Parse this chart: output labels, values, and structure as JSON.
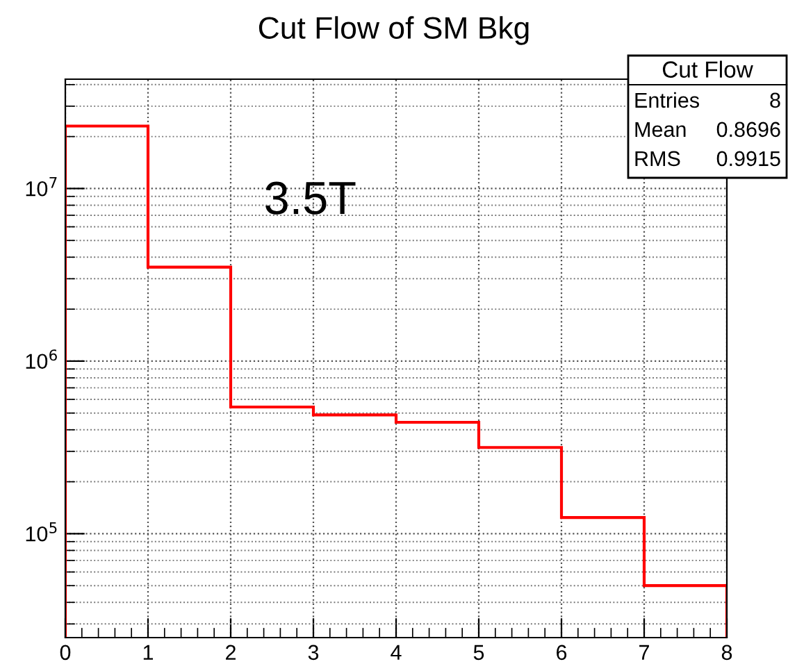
{
  "chart_data": {
    "type": "histogram",
    "title": "Cut Flow of SM Bkg",
    "bins": [
      0,
      1,
      2,
      3,
      4,
      5,
      6,
      7,
      8
    ],
    "values": [
      23000000,
      3500000,
      542000,
      488000,
      442000,
      316000,
      124000,
      50000
    ],
    "color": "#ff0000",
    "log": "y",
    "grid": true,
    "legend": false,
    "xlim": [
      0,
      8
    ],
    "xticks": [
      0,
      1,
      2,
      3,
      4,
      5,
      6,
      7,
      8
    ],
    "ylim": [
      25000,
      43000000
    ],
    "yticks": [
      {
        "value": 100000,
        "label": "10$^{5}$"
      },
      {
        "value": 1000000,
        "label": "10$^{6}$"
      },
      {
        "value": 10000000,
        "label": "10$^{7}$"
      }
    ],
    "annotations": [
      "3.5T",
      "Cut Flow",
      "Entries",
      "8",
      "Mean",
      "0.8696",
      "RMS",
      "0.9915"
    ]
  }
}
